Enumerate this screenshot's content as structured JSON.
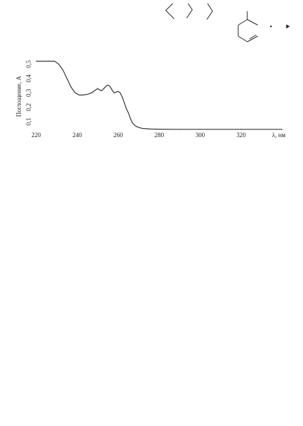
{
  "chart_data": {
    "type": "line",
    "title": "",
    "xlabel": "λ, нм",
    "ylabel": "Поглощение, А",
    "xlim": [
      220,
      340
    ],
    "ylim": [
      0.05,
      0.52
    ],
    "grid": false,
    "x_ticks": [
      "220",
      "240",
      "260",
      "280",
      "300",
      "320"
    ],
    "y_ticks": [
      "0,1",
      "0,2",
      "0,3",
      "0,4",
      "0,5"
    ],
    "series": [
      {
        "x": [
          220,
          226,
          229,
          230,
          231,
          233,
          235,
          237,
          239,
          241,
          243,
          245,
          247,
          249,
          250,
          251,
          252,
          253,
          254,
          255,
          256,
          257,
          258,
          259,
          260,
          261,
          262,
          263,
          264,
          265,
          266,
          267,
          268,
          269,
          270,
          271,
          272,
          274,
          276,
          280,
          290,
          300,
          320,
          340
        ],
        "y": [
          0.52,
          0.52,
          0.52,
          0.51,
          0.5,
          0.46,
          0.4,
          0.34,
          0.3,
          0.285,
          0.285,
          0.29,
          0.3,
          0.32,
          0.33,
          0.32,
          0.315,
          0.33,
          0.345,
          0.355,
          0.345,
          0.32,
          0.3,
          0.305,
          0.31,
          0.3,
          0.27,
          0.23,
          0.19,
          0.16,
          0.12,
          0.09,
          0.075,
          0.065,
          0.06,
          0.055,
          0.052,
          0.05,
          0.048,
          0.047,
          0.046,
          0.046,
          0.046,
          0.046
        ]
      }
    ]
  }
}
